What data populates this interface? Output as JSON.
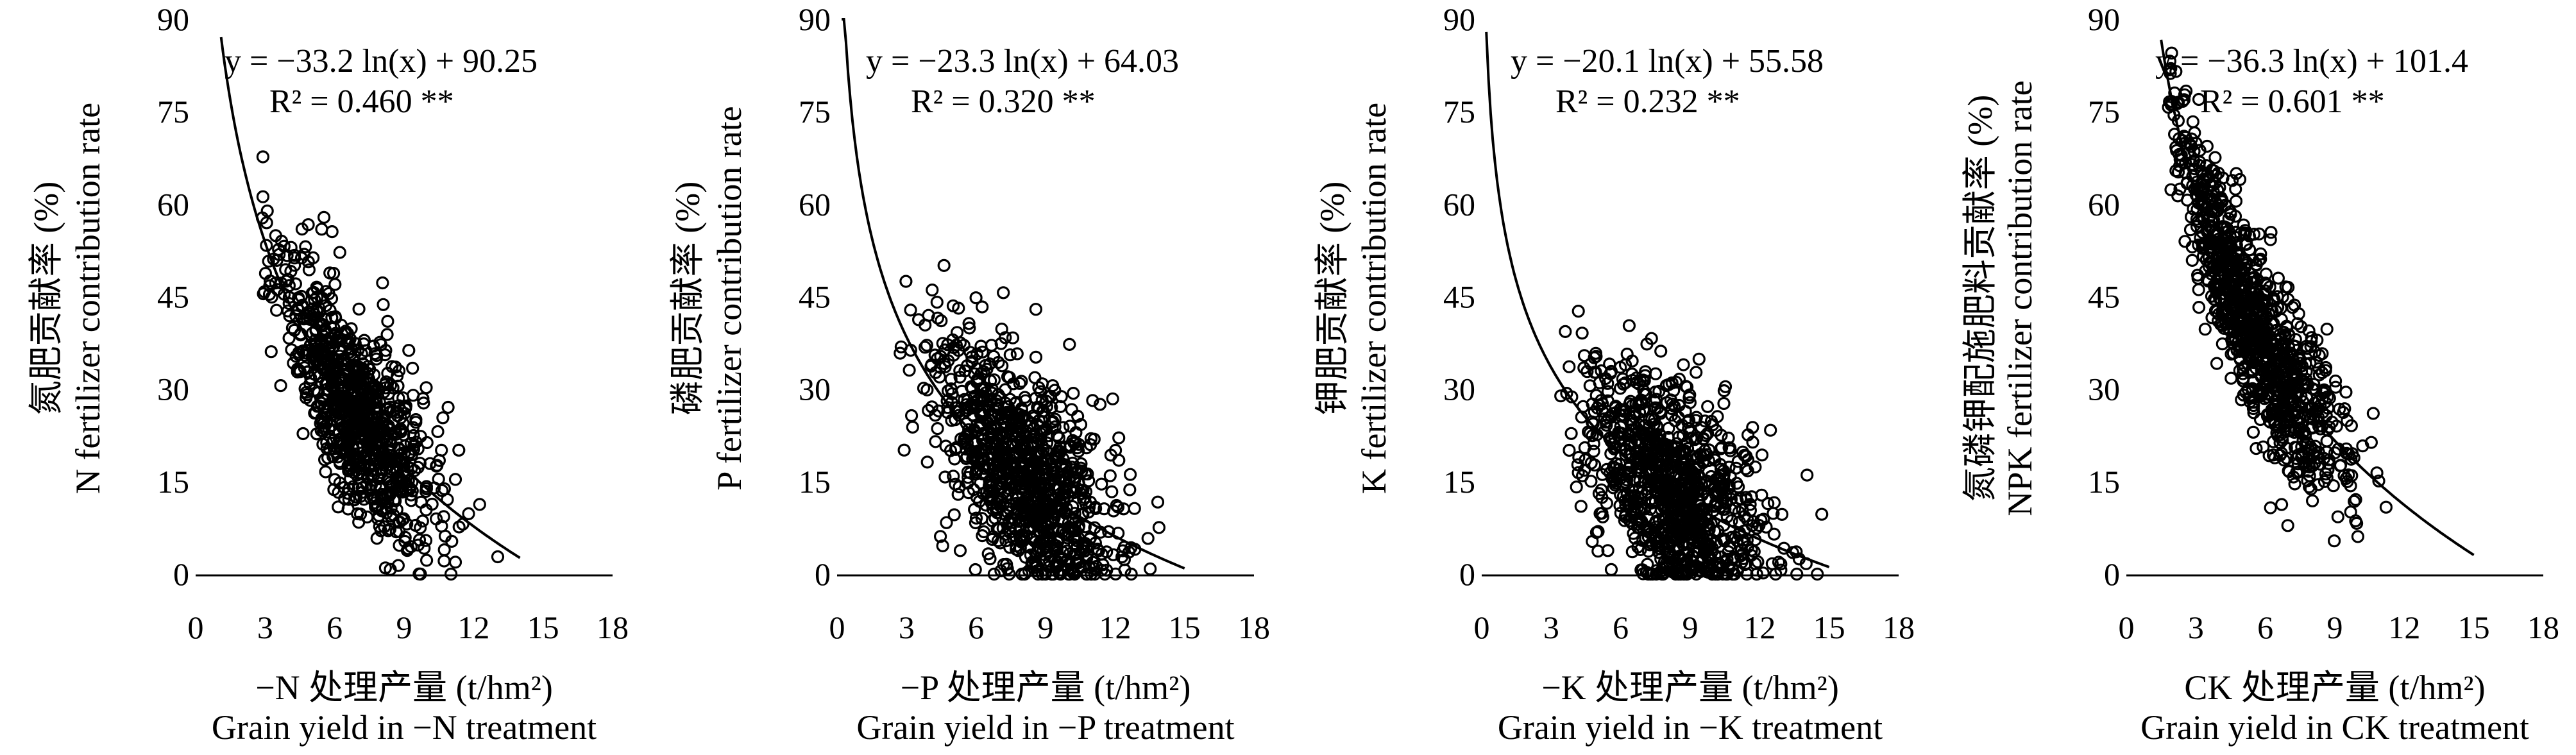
{
  "figure": {
    "background": "#ffffff",
    "ink": "#000000",
    "x_ticks": [
      "0",
      "3",
      "6",
      "9",
      "12",
      "15",
      "18"
    ],
    "y_ticks": [
      "0",
      "15",
      "30",
      "45",
      "60",
      "75",
      "90"
    ]
  },
  "chart_data": [
    {
      "type": "scatter",
      "id": "N",
      "equation": "y = −33.2 ln(x) + 90.25",
      "r2_label": "R² = 0.460 **",
      "fit": {
        "a": -33.2,
        "b": 90.25,
        "x_start": 1.1,
        "x_end": 14.0
      },
      "ylabel_cn": "氮肥贡献率 (%)",
      "ylabel_en": "N fertilizer contribution rate",
      "xlabel_cn": "−N 处理产量 (t/hm²)",
      "xlabel_en": "Grain yield in −N treatment",
      "xlim": [
        0,
        18
      ],
      "ylim": [
        0,
        90
      ],
      "cloud": {
        "center": 7.0,
        "spread": 1.7,
        "x_min": 2.8,
        "x_max": 13.2,
        "noise": 7.5,
        "count": 900,
        "seed": 11
      }
    },
    {
      "type": "scatter",
      "id": "P",
      "equation": "y = −23.3 ln(x) + 64.03",
      "r2_label": "R² = 0.320 **",
      "fit": {
        "a": -23.3,
        "b": 64.03,
        "x_start": 0.2,
        "x_end": 15.0
      },
      "ylabel_cn": "磷肥贡献率 (%)",
      "ylabel_en": "P fertilizer contribution rate",
      "xlabel_cn": "−P 处理产量 (t/hm²)",
      "xlabel_en": "Grain yield in −P treatment",
      "xlim": [
        0,
        18
      ],
      "ylim": [
        0,
        90
      ],
      "cloud": {
        "center": 8.0,
        "spread": 1.9,
        "x_min": 2.7,
        "x_max": 15.0,
        "noise": 8.5,
        "count": 1000,
        "seed": 23
      }
    },
    {
      "type": "scatter",
      "id": "K",
      "equation": "y = −20.1 ln(x) + 55.58",
      "r2_label": "R² = 0.232 **",
      "fit": {
        "a": -20.1,
        "b": 55.58,
        "x_start": 0.2,
        "x_end": 15.0
      },
      "ylabel_cn": "钾肥贡献率 (%)",
      "ylabel_en": "K fertilizer contribution rate",
      "xlabel_cn": "−K 处理产量 (t/hm²)",
      "xlabel_en": "Grain yield in −K treatment",
      "xlim": [
        0,
        18
      ],
      "ylim": [
        0,
        90
      ],
      "cloud": {
        "center": 8.3,
        "spread": 1.9,
        "x_min": 3.2,
        "x_max": 14.8,
        "noise": 8.0,
        "count": 1000,
        "seed": 37
      }
    },
    {
      "type": "scatter",
      "id": "NPK",
      "equation": "y = −36.3 ln(x) + 101.4",
      "r2_label": "R² = 0.601 **",
      "fit": {
        "a": -36.3,
        "b": 101.4,
        "x_start": 1.5,
        "x_end": 15.0
      },
      "ylabel_cn": "氮磷钾配施肥料贡献率 (%)",
      "ylabel_en": "NPK fertilizer contribution rate",
      "xlabel_cn": "CK 处理产量 (t/hm²)",
      "xlabel_en": "Grain yield in CK treatment",
      "xlim": [
        0,
        18
      ],
      "ylim": [
        0,
        90
      ],
      "cloud": {
        "center": 5.6,
        "spread": 1.9,
        "x_min": 1.8,
        "x_max": 14.0,
        "noise": 7.0,
        "count": 1000,
        "seed": 53
      }
    }
  ]
}
